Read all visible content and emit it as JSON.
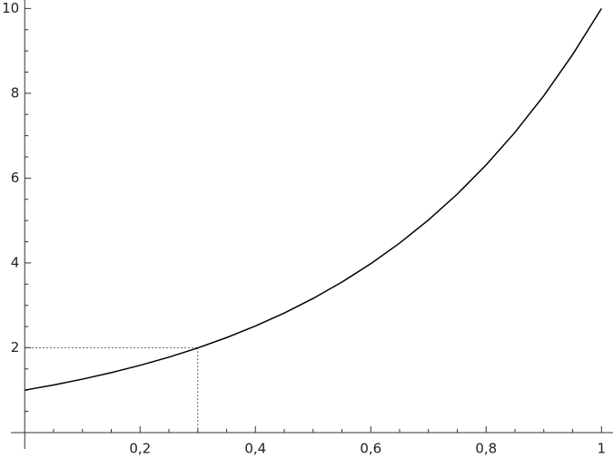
{
  "chart_data": {
    "type": "line",
    "x": [
      0,
      0.05,
      0.1,
      0.15,
      0.2,
      0.25,
      0.3,
      0.35,
      0.4,
      0.45,
      0.5,
      0.55,
      0.6,
      0.65,
      0.7,
      0.75,
      0.8,
      0.85,
      0.9,
      0.95,
      1
    ],
    "values": [
      1,
      1.122,
      1.259,
      1.413,
      1.585,
      1.778,
      1.995,
      2.239,
      2.512,
      2.818,
      3.162,
      3.548,
      3.981,
      4.467,
      5.012,
      5.623,
      6.31,
      7.079,
      7.943,
      8.913,
      10
    ],
    "color": "#000000",
    "reference": {
      "x": 0.3,
      "y": 2
    },
    "xlim": [
      -0.024,
      1.02
    ],
    "ylim": [
      -0.6,
      10.2
    ],
    "xticks": [
      {
        "value": 0.2,
        "label": "0,2"
      },
      {
        "value": 0.4,
        "label": "0,4"
      },
      {
        "value": 0.6,
        "label": "0,6"
      },
      {
        "value": 0.8,
        "label": "0,8"
      },
      1
    ],
    "yticks": [
      2,
      4,
      6,
      8,
      10
    ],
    "xminorticks": [
      0.05,
      0.1,
      0.15,
      0.25,
      0.3,
      0.35,
      0.45,
      0.5,
      0.55,
      0.65,
      0.7,
      0.75,
      0.85,
      0.9,
      0.95
    ],
    "yminorticks": [
      0.5,
      1,
      1.5,
      2.5,
      3,
      3.5,
      4.5,
      5,
      5.5,
      6.5,
      7,
      7.5,
      8.5,
      9,
      9.5
    ],
    "grid": false
  }
}
